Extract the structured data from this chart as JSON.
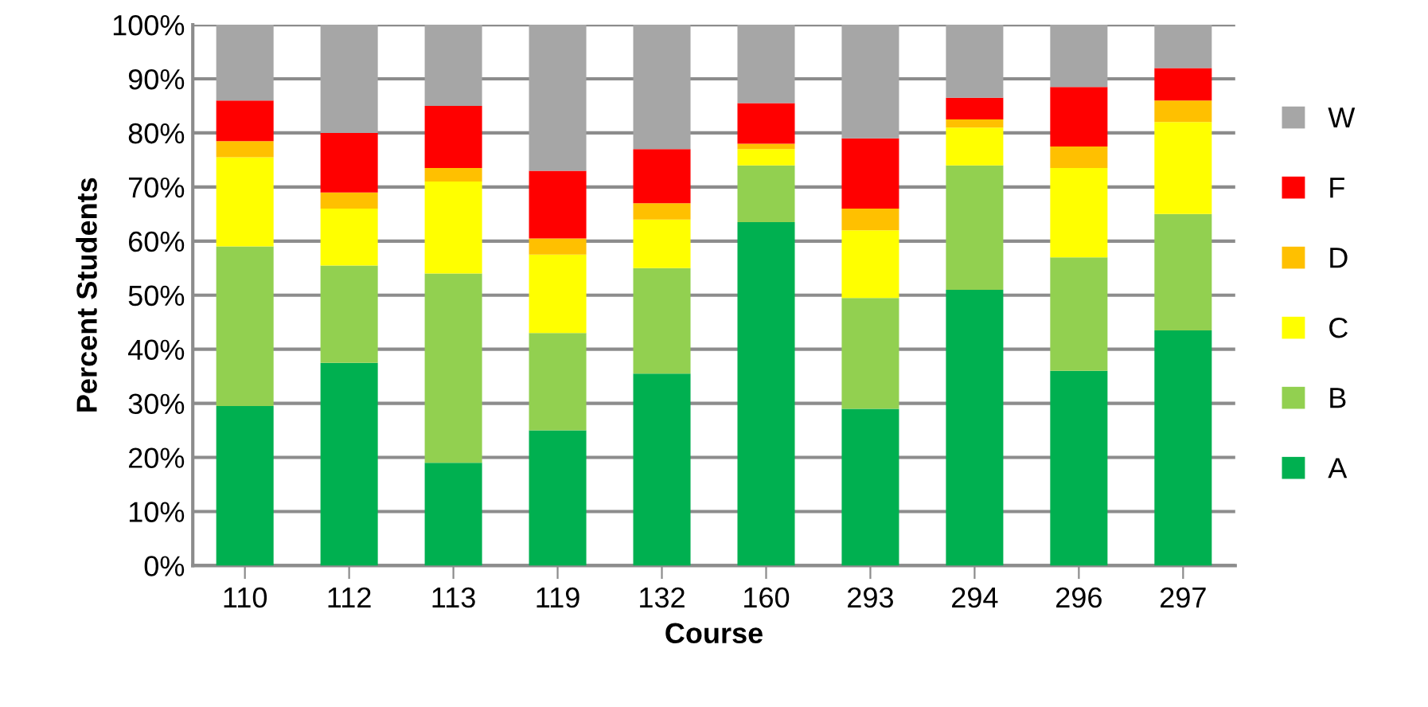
{
  "chart_data": {
    "type": "bar",
    "stacked": true,
    "xlabel": "Course",
    "ylabel": "Percent Students",
    "categories": [
      "110",
      "112",
      "113",
      "119",
      "132",
      "160",
      "293",
      "294",
      "296",
      "297"
    ],
    "series": [
      {
        "name": "A",
        "color": "#00b050",
        "values": [
          29.5,
          37.5,
          19,
          25,
          35.5,
          63.5,
          29,
          51,
          36,
          43.5
        ]
      },
      {
        "name": "B",
        "color": "#92d050",
        "values": [
          29.5,
          18,
          35,
          18,
          19.5,
          10.5,
          20.5,
          23,
          21,
          21.5
        ]
      },
      {
        "name": "C",
        "color": "#ffff00",
        "values": [
          16.5,
          10.5,
          17,
          14.5,
          9,
          3,
          12.5,
          7,
          16.5,
          17
        ]
      },
      {
        "name": "D",
        "color": "#ffc000",
        "values": [
          3,
          3,
          2.5,
          3,
          3,
          1,
          4,
          1.5,
          4,
          4
        ]
      },
      {
        "name": "F",
        "color": "#ff0000",
        "values": [
          7.5,
          11,
          11.5,
          12.5,
          10,
          7.5,
          13,
          4,
          11,
          6
        ]
      },
      {
        "name": "W",
        "color": "#a6a6a6",
        "values": [
          14,
          20,
          15,
          27,
          23,
          14.5,
          21,
          13.5,
          11.5,
          8
        ]
      }
    ],
    "ylim": [
      0,
      100
    ],
    "yticks": [
      {
        "value": 0,
        "label": "0%"
      },
      {
        "value": 10,
        "label": "10%"
      },
      {
        "value": 20,
        "label": "20%"
      },
      {
        "value": 30,
        "label": "30%"
      },
      {
        "value": 40,
        "label": "40%"
      },
      {
        "value": 50,
        "label": "50%"
      },
      {
        "value": 60,
        "label": "60%"
      },
      {
        "value": 70,
        "label": "70%"
      },
      {
        "value": 80,
        "label": "80%"
      },
      {
        "value": 90,
        "label": "90%"
      },
      {
        "value": 100,
        "label": "100%"
      }
    ],
    "grid": "y",
    "legend": "right"
  }
}
